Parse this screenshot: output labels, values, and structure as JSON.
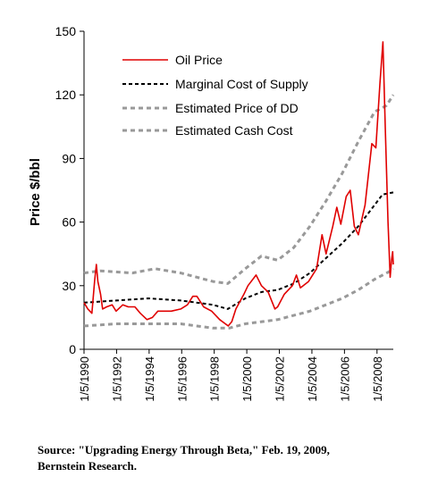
{
  "chart_data": {
    "type": "line",
    "ylabel": "Price $/bbl",
    "ylim": [
      0,
      150
    ],
    "yticks": [
      0,
      30,
      60,
      90,
      120,
      150
    ],
    "xlim": [
      "1990-01-05",
      "2009-03-01"
    ],
    "xticks": [
      "1/5/1990",
      "1/5/1992",
      "1/5/1994",
      "1/5/1996",
      "1/5/1998",
      "1/5/2000",
      "1/5/2002",
      "1/5/2004",
      "1/5/2006",
      "1/5/2008"
    ],
    "legend_position": "top-left",
    "series": [
      {
        "name": "Oil Price",
        "color": "#e00000",
        "style": "solid",
        "points": [
          [
            "1990-01-05",
            22
          ],
          [
            "1990-04-01",
            19
          ],
          [
            "1990-07-01",
            17
          ],
          [
            "1990-09-01",
            32
          ],
          [
            "1990-10-10",
            40
          ],
          [
            "1990-11-15",
            32
          ],
          [
            "1991-01-15",
            26
          ],
          [
            "1991-03-01",
            19
          ],
          [
            "1991-06-01",
            20
          ],
          [
            "1991-10-01",
            21
          ],
          [
            "1992-01-01",
            18
          ],
          [
            "1992-06-01",
            21
          ],
          [
            "1992-10-01",
            20
          ],
          [
            "1993-03-01",
            20
          ],
          [
            "1993-07-01",
            17
          ],
          [
            "1993-12-01",
            14
          ],
          [
            "1994-04-01",
            15
          ],
          [
            "1994-08-01",
            18
          ],
          [
            "1995-01-01",
            18
          ],
          [
            "1995-06-01",
            18
          ],
          [
            "1996-01-01",
            19
          ],
          [
            "1996-06-01",
            21
          ],
          [
            "1996-10-01",
            25
          ],
          [
            "1997-01-01",
            25
          ],
          [
            "1997-06-01",
            20
          ],
          [
            "1997-12-01",
            18
          ],
          [
            "1998-06-01",
            14
          ],
          [
            "1998-12-10",
            11
          ],
          [
            "1999-03-01",
            13
          ],
          [
            "1999-06-01",
            19
          ],
          [
            "1999-12-01",
            26
          ],
          [
            "2000-03-01",
            30
          ],
          [
            "2000-09-01",
            35
          ],
          [
            "2001-01-01",
            30
          ],
          [
            "2001-06-01",
            27
          ],
          [
            "2001-11-01",
            19
          ],
          [
            "2002-01-01",
            20
          ],
          [
            "2002-06-01",
            26
          ],
          [
            "2002-12-01",
            30
          ],
          [
            "2003-03-01",
            35
          ],
          [
            "2003-06-01",
            29
          ],
          [
            "2003-12-01",
            32
          ],
          [
            "2004-06-01",
            38
          ],
          [
            "2004-10-01",
            54
          ],
          [
            "2005-01-01",
            45
          ],
          [
            "2005-06-01",
            58
          ],
          [
            "2005-09-01",
            67
          ],
          [
            "2005-12-01",
            59
          ],
          [
            "2006-04-01",
            72
          ],
          [
            "2006-07-01",
            75
          ],
          [
            "2006-10-01",
            58
          ],
          [
            "2007-01-01",
            54
          ],
          [
            "2007-06-01",
            68
          ],
          [
            "2007-11-01",
            97
          ],
          [
            "2008-02-01",
            95
          ],
          [
            "2008-05-01",
            125
          ],
          [
            "2008-07-10",
            145
          ],
          [
            "2008-09-01",
            105
          ],
          [
            "2008-11-01",
            60
          ],
          [
            "2008-12-20",
            34
          ],
          [
            "2009-01-20",
            42
          ],
          [
            "2009-02-15",
            46
          ],
          [
            "2009-03-01",
            40
          ]
        ]
      },
      {
        "name": "Marginal Cost of Supply",
        "color": "#000000",
        "style": "dashed",
        "points": [
          [
            "1990-01-05",
            22
          ],
          [
            "1992-01-01",
            23
          ],
          [
            "1994-01-01",
            24
          ],
          [
            "1996-01-01",
            23
          ],
          [
            "1998-01-01",
            21
          ],
          [
            "1998-12-01",
            19
          ],
          [
            "2000-01-01",
            24
          ],
          [
            "2001-01-01",
            27
          ],
          [
            "2002-01-01",
            28
          ],
          [
            "2003-01-01",
            31
          ],
          [
            "2004-01-01",
            36
          ],
          [
            "2005-01-01",
            43
          ],
          [
            "2006-01-01",
            50
          ],
          [
            "2007-01-01",
            58
          ],
          [
            "2008-01-01",
            68
          ],
          [
            "2008-07-01",
            73
          ],
          [
            "2009-03-01",
            74
          ]
        ]
      },
      {
        "name": "Estimated Price of DD",
        "color": "#999999",
        "style": "dashed",
        "points": [
          [
            "1990-01-05",
            36
          ],
          [
            "1991-01-01",
            37
          ],
          [
            "1993-01-01",
            36
          ],
          [
            "1994-06-01",
            38
          ],
          [
            "1996-01-01",
            36
          ],
          [
            "1998-01-01",
            32
          ],
          [
            "1998-12-01",
            31
          ],
          [
            "2000-01-01",
            38
          ],
          [
            "2001-01-01",
            44
          ],
          [
            "2002-01-01",
            42
          ],
          [
            "2003-01-01",
            48
          ],
          [
            "2004-01-01",
            58
          ],
          [
            "2005-01-01",
            70
          ],
          [
            "2006-01-01",
            83
          ],
          [
            "2007-01-01",
            98
          ],
          [
            "2008-01-01",
            112
          ],
          [
            "2008-10-01",
            115
          ],
          [
            "2009-03-01",
            120
          ]
        ]
      },
      {
        "name": "Estimated Cash Cost",
        "color": "#999999",
        "style": "dashed",
        "points": [
          [
            "1990-01-05",
            11
          ],
          [
            "1992-01-01",
            12
          ],
          [
            "1994-01-01",
            12
          ],
          [
            "1996-01-01",
            12
          ],
          [
            "1998-01-01",
            10
          ],
          [
            "1999-01-01",
            10
          ],
          [
            "2000-01-01",
            12
          ],
          [
            "2002-01-01",
            14
          ],
          [
            "2004-01-01",
            18
          ],
          [
            "2006-01-01",
            24
          ],
          [
            "2007-01-01",
            28
          ],
          [
            "2008-01-01",
            33
          ],
          [
            "2009-01-01",
            37
          ],
          [
            "2009-03-01",
            38
          ]
        ]
      }
    ]
  },
  "source": {
    "line1": "Source: \"Upgrading Energy Through Beta,\" Feb. 19, 2009,",
    "line2": "Bernstein Research."
  }
}
